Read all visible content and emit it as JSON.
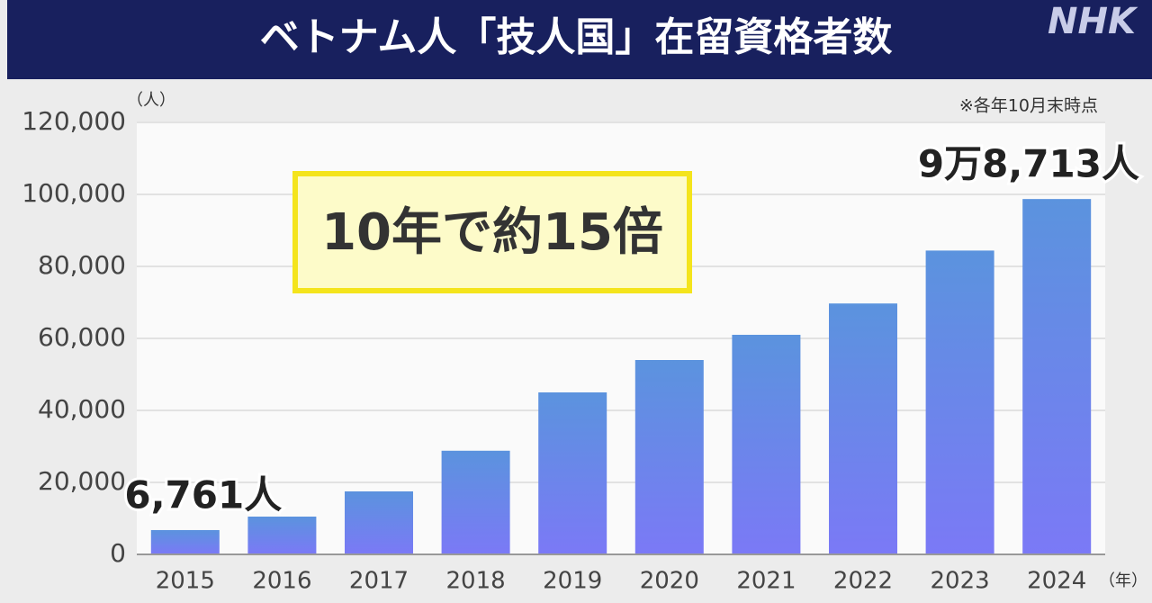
{
  "chart_data": {
    "type": "bar",
    "title": "ベトナム人「技人国」在留資格者数",
    "logo": "NHK",
    "note": "※各年10月末時点",
    "annotation": "10年で約15倍",
    "y_unit": "（人）",
    "x_unit": "（年）",
    "categories": [
      "2015",
      "2016",
      "2017",
      "2018",
      "2019",
      "2020",
      "2021",
      "2022",
      "2023",
      "2024"
    ],
    "values": [
      6761,
      10500,
      17500,
      28800,
      45000,
      54000,
      61000,
      69700,
      84400,
      98713
    ],
    "value_labels": [
      "6,761人",
      null,
      null,
      null,
      null,
      null,
      null,
      null,
      null,
      "9万8,713人"
    ],
    "gradient": [
      "#5b93de",
      "#7b79f6"
    ],
    "ylim": [
      0,
      120000
    ],
    "yticks": [
      0,
      {
        "value": 20000,
        "label": "20,000"
      },
      {
        "value": 40000,
        "label": "40,000"
      },
      {
        "value": 60000,
        "label": "60,000"
      },
      {
        "value": 80000,
        "label": "80,000"
      },
      {
        "value": 100000,
        "label": "100,000"
      },
      {
        "value": 120000,
        "label": "120,000"
      }
    ],
    "grid": true
  }
}
